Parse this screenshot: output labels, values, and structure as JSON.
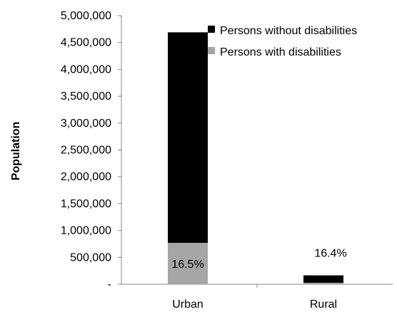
{
  "chart_data": {
    "type": "bar",
    "stacked": true,
    "categories": [
      "Urban",
      "Rural"
    ],
    "series": [
      {
        "name": "Persons with disabilities",
        "values": [
          770000,
          27000
        ],
        "color": "#a6a6a6"
      },
      {
        "name": "Persons without disabilities",
        "values": [
          3920000,
          138000
        ],
        "color": "#000000"
      }
    ],
    "data_labels": [
      "16.5%",
      "16.4%"
    ],
    "title": "",
    "xlabel": "",
    "ylabel": "Population",
    "ylim": [
      0,
      5000000
    ],
    "yticks": [
      0,
      500000,
      1000000,
      1500000,
      2000000,
      2500000,
      3000000,
      3500000,
      4000000,
      4500000,
      5000000
    ],
    "ytick_labels": [
      "-",
      "500,000",
      "1,000,000",
      "1,500,000",
      "2,000,000",
      "2,500,000",
      "3,000,000",
      "3,500,000",
      "4,000,000",
      "4,500,000",
      "5,000,000"
    ],
    "legend": {
      "placement": "top-right",
      "entries": [
        {
          "label": "Persons without disabilities",
          "color": "#000000"
        },
        {
          "label": "Persons with disabilities",
          "color": "#a6a6a6"
        }
      ]
    },
    "grid": false
  }
}
